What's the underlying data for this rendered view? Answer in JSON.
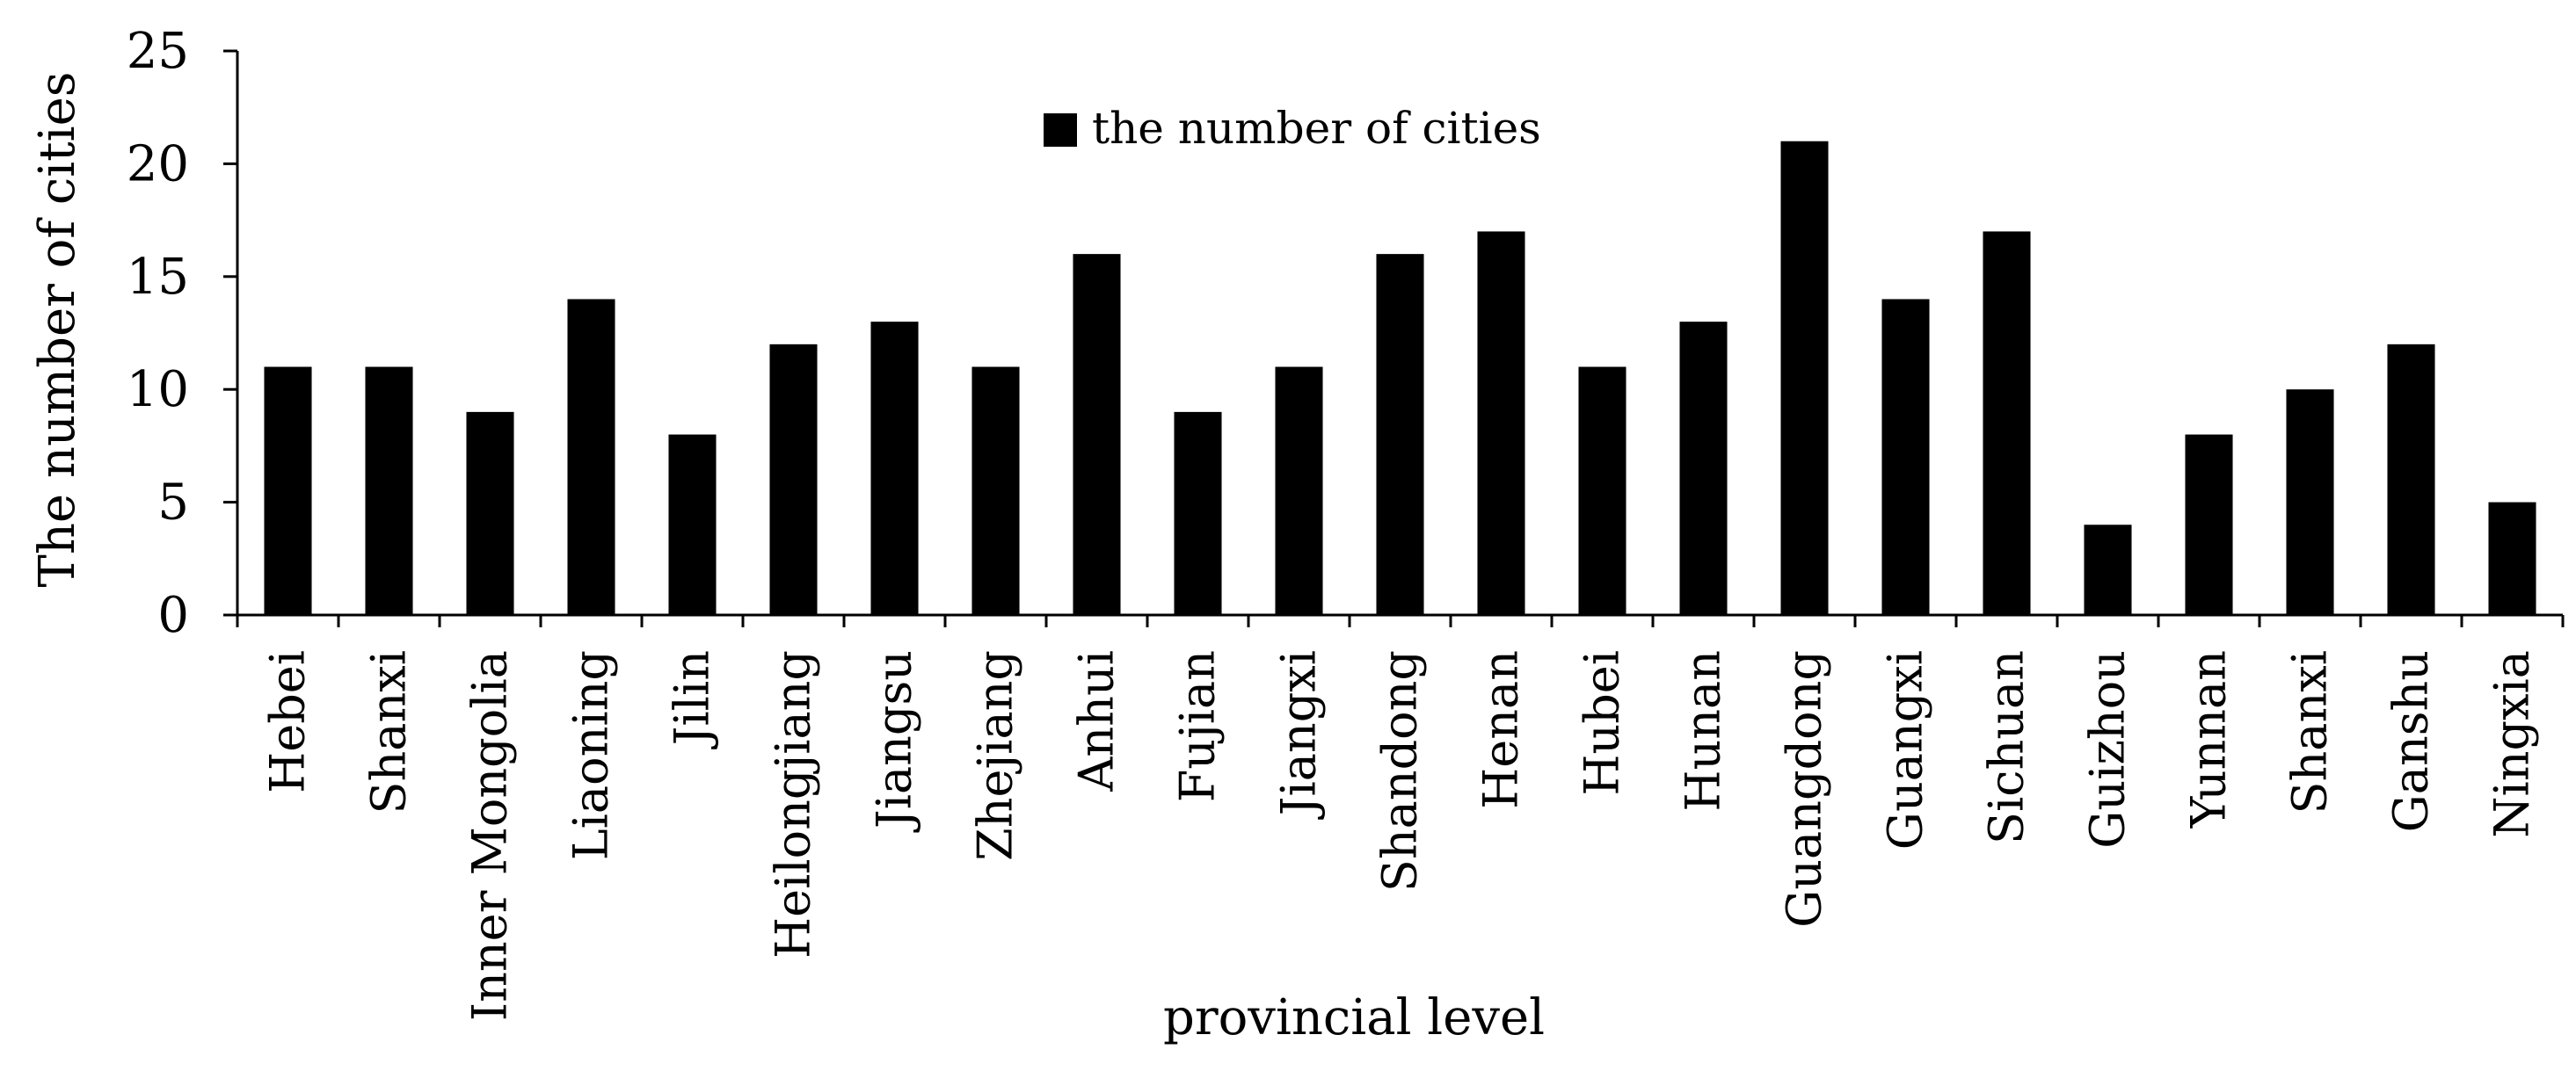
{
  "chart_data": {
    "type": "bar",
    "xlabel": "provincial level",
    "ylabel": "The number of cities",
    "ylim": [
      0,
      25
    ],
    "yticks": [
      0,
      5,
      10,
      15,
      20,
      25
    ],
    "grid": false,
    "legend_position": "top-center",
    "categories": [
      "Hebei",
      "Shanxi",
      "Inner Mongolia",
      "Liaoning",
      "Jilin",
      "Heilongjiang",
      "Jiangsu",
      "Zhejiang",
      "Anhui",
      "Fujian",
      "Jiangxi",
      "Shandong",
      "Henan",
      "Hubei",
      "Hunan",
      "Guangdong",
      "Guangxi",
      "Sichuan",
      "Guizhou",
      "Yunnan",
      "Shanxi",
      "Ganshu",
      "Ningxia"
    ],
    "series": [
      {
        "name": "the number of cities",
        "color": "#000000",
        "values": [
          11,
          11,
          9,
          14,
          8,
          12,
          13,
          11,
          16,
          9,
          11,
          16,
          17,
          11,
          13,
          21,
          14,
          17,
          4,
          8,
          10,
          12,
          5
        ]
      }
    ]
  }
}
